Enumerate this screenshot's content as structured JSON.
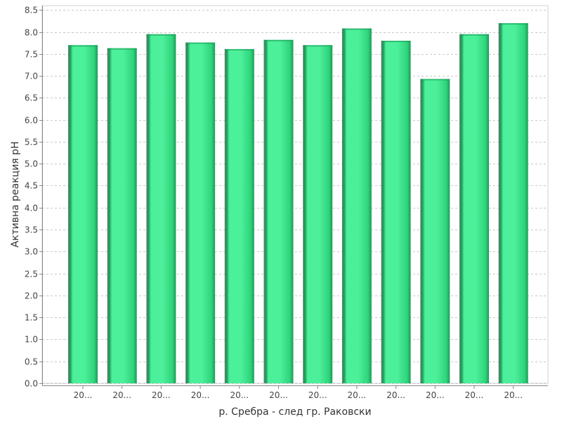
{
  "chart_data": {
    "type": "bar",
    "title": "",
    "xlabel": "р. Сребра - след гр. Раковски",
    "ylabel": "Активна реакция pH",
    "categories": [
      "20...",
      "20...",
      "20...",
      "20...",
      "20...",
      "20...",
      "20...",
      "20...",
      "20...",
      "20...",
      "20...",
      "20..."
    ],
    "values": [
      7.7,
      7.63,
      7.95,
      7.76,
      7.61,
      7.82,
      7.7,
      8.08,
      7.8,
      6.93,
      7.95,
      8.2
    ],
    "ylim": [
      0,
      8.6
    ],
    "yticks": [
      "0.0",
      "0.5",
      "1.0",
      "1.5",
      "2.0",
      "2.5",
      "3.0",
      "3.5",
      "4.0",
      "4.5",
      "5.0",
      "5.5",
      "6.0",
      "6.5",
      "7.0",
      "7.5",
      "8.0",
      "8.5"
    ],
    "grid": true,
    "legend": "none",
    "colors": {
      "bar_light": "#4cf09a",
      "bar_mid": "#2fd47c",
      "bar_dark": "#1a9c58",
      "bar_edge": "#5f7f6a",
      "grid": "#c8c8c8",
      "axis": "#888888"
    }
  }
}
